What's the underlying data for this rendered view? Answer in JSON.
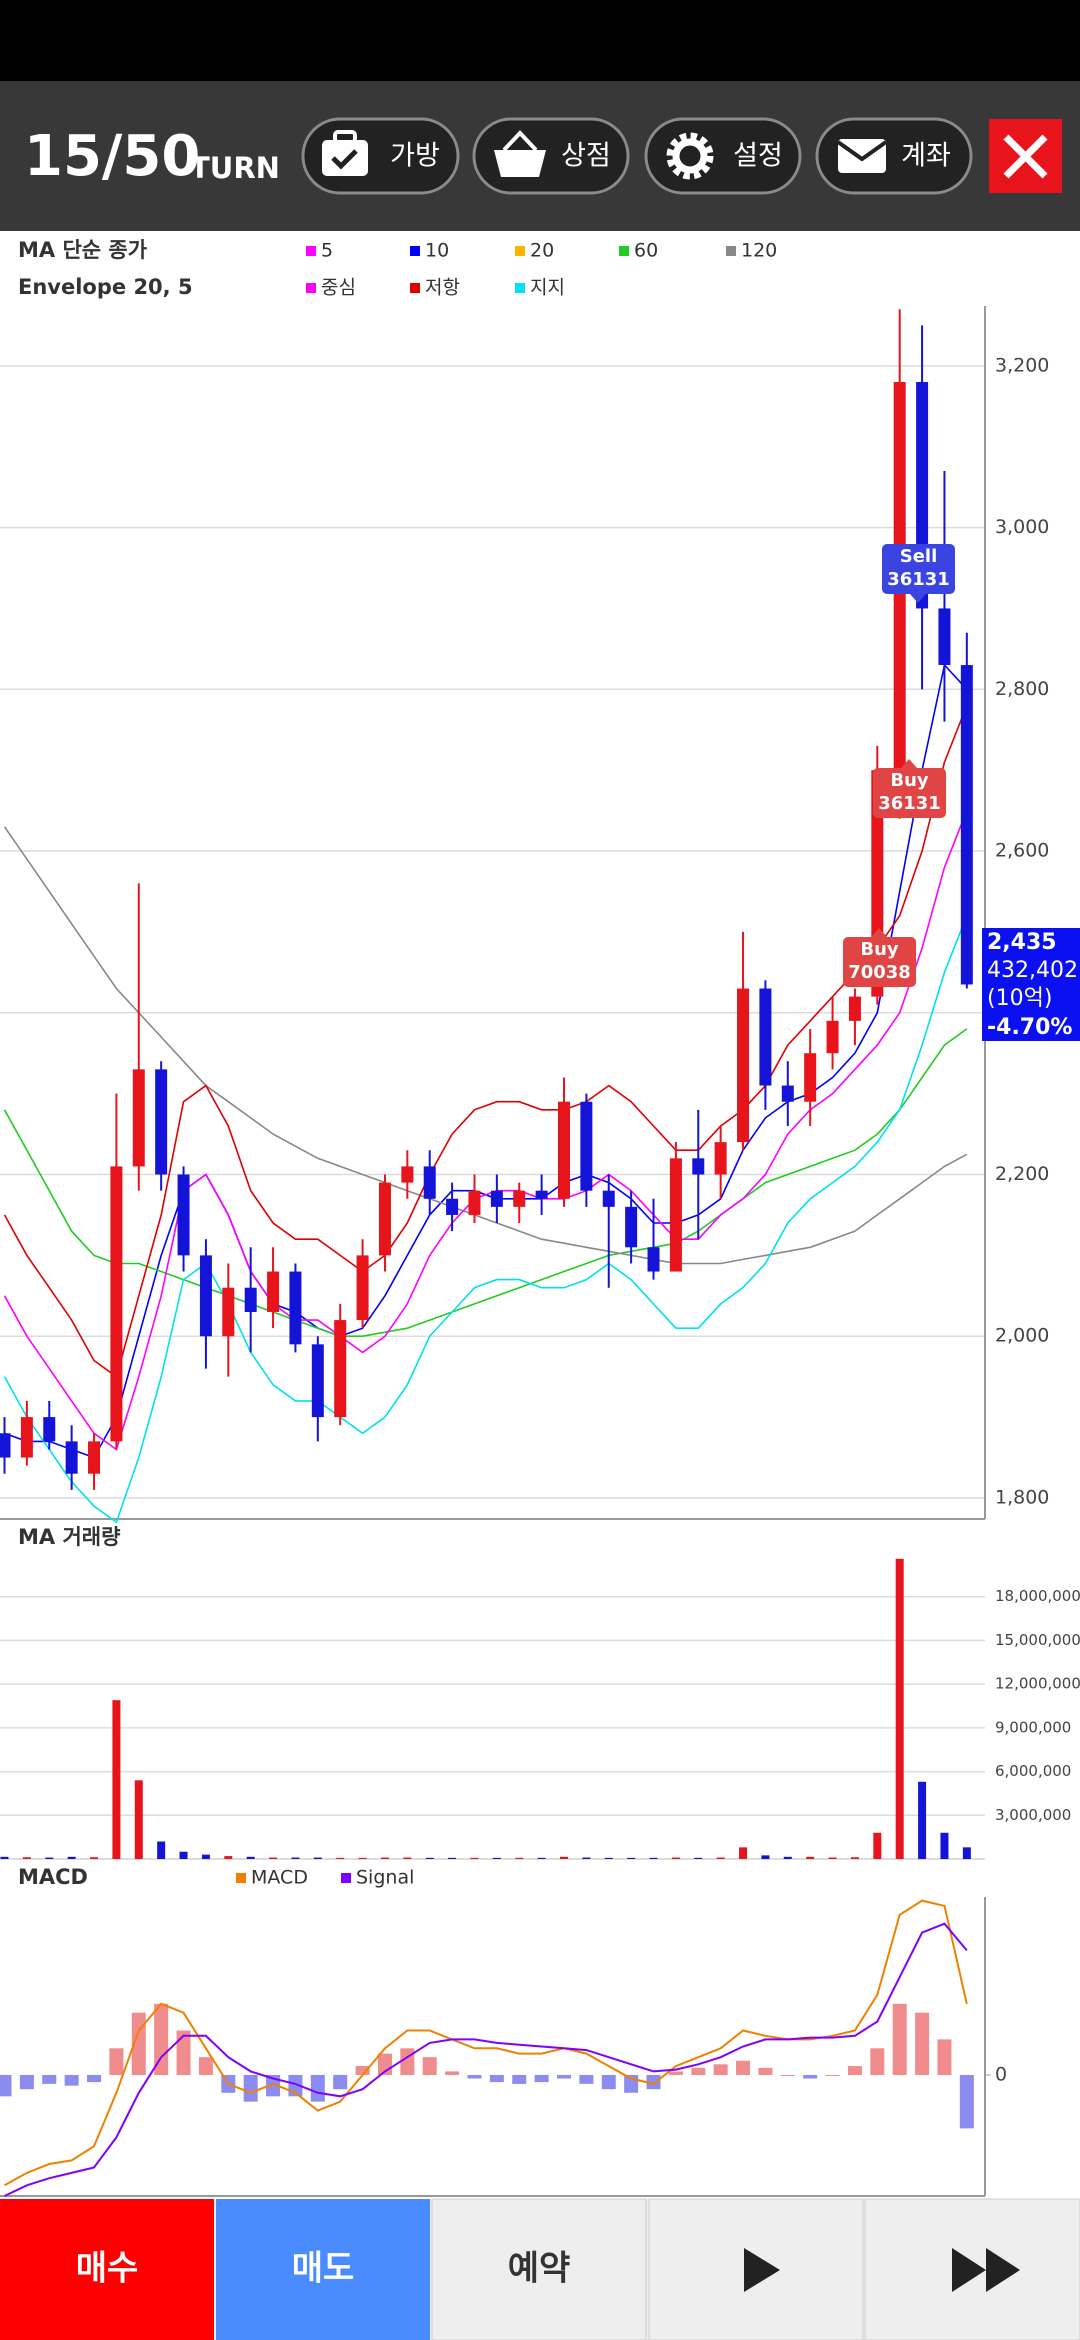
{
  "header": {
    "turn": "15/50",
    "turn_label": "TURN",
    "buttons": [
      "가방",
      "상점",
      "설정",
      "계좌"
    ]
  },
  "footer": {
    "buttons": [
      "매수",
      "매도",
      "예약"
    ]
  },
  "chart_data": [
    {
      "type": "candlestick",
      "title": "MA 단순 종가",
      "subtitle": "Envelope 20, 5",
      "open": [
        1880,
        1850,
        1900,
        1870,
        1830,
        1870,
        2210,
        2330,
        2200,
        2100,
        2000,
        2060,
        2030,
        2080,
        1990,
        1900,
        2020,
        2100,
        2190,
        2210,
        2170,
        2150,
        2180,
        2160,
        2180,
        2170,
        2290,
        2180,
        2160,
        2110,
        2080,
        2220,
        2200,
        2240,
        2430,
        2310,
        2290,
        2350,
        2390,
        2420,
        2650,
        3180,
        2900,
        2830
      ],
      "high": [
        1900,
        1920,
        1920,
        1890,
        1880,
        2300,
        2560,
        2340,
        2210,
        2120,
        2090,
        2110,
        2110,
        2090,
        2000,
        2040,
        2120,
        2200,
        2230,
        2230,
        2190,
        2200,
        2200,
        2190,
        2200,
        2320,
        2300,
        2200,
        2180,
        2170,
        2240,
        2280,
        2260,
        2500,
        2440,
        2340,
        2380,
        2420,
        2430,
        2730,
        3270,
        3250,
        3070,
        2870
      ],
      "low": [
        1830,
        1840,
        1860,
        1810,
        1810,
        1860,
        2180,
        2180,
        2080,
        1960,
        1950,
        1980,
        2010,
        1980,
        1870,
        1890,
        2010,
        2080,
        2170,
        2150,
        2130,
        2140,
        2140,
        2140,
        2150,
        2160,
        2160,
        2060,
        2090,
        2070,
        2080,
        2120,
        2170,
        2230,
        2280,
        2260,
        2260,
        2330,
        2360,
        2410,
        2640,
        2800,
        2760,
        2430
      ],
      "close": [
        1850,
        1900,
        1870,
        1830,
        1870,
        2210,
        2330,
        2200,
        2100,
        2000,
        2060,
        2030,
        2080,
        1990,
        1900,
        2020,
        2100,
        2190,
        2210,
        2170,
        2150,
        2180,
        2160,
        2180,
        2170,
        2290,
        2180,
        2160,
        2110,
        2080,
        2220,
        2200,
        2240,
        2430,
        2310,
        2290,
        2350,
        2390,
        2420,
        2700,
        3180,
        2900,
        2830,
        2435
      ],
      "up_color": "#e8141c",
      "down_color": "#1414d8",
      "ma_series": [
        {
          "name": "5",
          "color": "#ff00ff"
        },
        {
          "name": "10",
          "color": "#0000ff",
          "values": [
            1880,
            1870,
            1870,
            1860,
            1850,
            1900,
            2000,
            2100,
            2180,
            2200,
            2150,
            2080,
            2040,
            2030,
            2010,
            2000,
            2010,
            2050,
            2100,
            2150,
            2180,
            2180,
            2170,
            2170,
            2170,
            2190,
            2200,
            2190,
            2170,
            2140,
            2140,
            2150,
            2170,
            2230,
            2270,
            2290,
            2300,
            2320,
            2350,
            2400,
            2550,
            2700,
            2830,
            2800
          ]
        },
        {
          "name": "20",
          "color": "#ffb400"
        },
        {
          "name": "60",
          "color": "#22cc22",
          "values": [
            2280,
            2230,
            2180,
            2130,
            2100,
            2090,
            2090,
            2080,
            2070,
            2060,
            2050,
            2040,
            2030,
            2020,
            2010,
            2000,
            2000,
            2005,
            2010,
            2020,
            2030,
            2040,
            2050,
            2060,
            2070,
            2080,
            2090,
            2100,
            2105,
            2110,
            2115,
            2130,
            2150,
            2170,
            2190,
            2200,
            2210,
            2220,
            2230,
            2250,
            2280,
            2320,
            2360,
            2380
          ]
        },
        {
          "name": "120",
          "color": "#888888",
          "values": [
            2630,
            2590,
            2550,
            2510,
            2470,
            2430,
            2400,
            2370,
            2340,
            2310,
            2290,
            2270,
            2250,
            2235,
            2220,
            2210,
            2200,
            2190,
            2180,
            2170,
            2160,
            2150,
            2140,
            2130,
            2120,
            2115,
            2110,
            2105,
            2100,
            2095,
            2090,
            2090,
            2090,
            2095,
            2100,
            2105,
            2110,
            2120,
            2130,
            2150,
            2170,
            2190,
            2210,
            2225
          ]
        }
      ],
      "envelope_series": [
        {
          "name": "중심",
          "color": "#ff00ff",
          "values": [
            2050,
            2000,
            1960,
            1920,
            1880,
            1860,
            1950,
            2050,
            2180,
            2200,
            2150,
            2080,
            2040,
            2020,
            2020,
            2000,
            1980,
            2000,
            2040,
            2100,
            2140,
            2170,
            2180,
            2180,
            2170,
            2170,
            2180,
            2200,
            2180,
            2150,
            2120,
            2120,
            2150,
            2170,
            2200,
            2250,
            2280,
            2300,
            2330,
            2360,
            2400,
            2480,
            2580,
            2650
          ]
        },
        {
          "name": "저항",
          "color": "#e00000",
          "values": [
            2150,
            2100,
            2060,
            2020,
            1970,
            1950,
            2050,
            2150,
            2290,
            2310,
            2260,
            2180,
            2140,
            2120,
            2120,
            2100,
            2080,
            2100,
            2140,
            2200,
            2250,
            2280,
            2290,
            2290,
            2280,
            2280,
            2290,
            2310,
            2290,
            2260,
            2230,
            2230,
            2260,
            2280,
            2310,
            2360,
            2390,
            2420,
            2450,
            2480,
            2520,
            2600,
            2710,
            2780
          ]
        },
        {
          "name": "지지",
          "color": "#00e0f0",
          "values": [
            1950,
            1900,
            1860,
            1820,
            1790,
            1770,
            1850,
            1950,
            2070,
            2090,
            2040,
            1980,
            1940,
            1920,
            1920,
            1900,
            1880,
            1900,
            1940,
            2000,
            2030,
            2060,
            2070,
            2070,
            2060,
            2060,
            2070,
            2090,
            2070,
            2040,
            2010,
            2010,
            2040,
            2060,
            2090,
            2140,
            2170,
            2190,
            2210,
            2240,
            2280,
            2360,
            2450,
            2520
          ]
        }
      ],
      "ylim": [
        1774,
        3274
      ],
      "yticks": [
        {
          "value": 1800,
          "label": "1,800"
        },
        {
          "value": 2000,
          "label": "2,000"
        },
        {
          "value": 2200,
          "label": "2,200"
        },
        {
          "value": 2400,
          "label": "2,400"
        },
        {
          "value": 2600,
          "label": "2,600"
        },
        {
          "value": 2800,
          "label": "2,800"
        },
        {
          "value": 3000,
          "label": "3,000"
        },
        {
          "value": 3200,
          "label": "3,200"
        }
      ],
      "grid": true,
      "markers": [
        {
          "label": "Sell",
          "value": 36131
        },
        {
          "label": "Buy",
          "value": 36131
        },
        {
          "label": "Buy",
          "value": 70038
        }
      ],
      "current": {
        "price": "2,435",
        "volume": "432,402",
        "unit": "(10억)",
        "change": "-4.70%"
      }
    },
    {
      "type": "bar",
      "title": "MA 거래량",
      "values": [
        150000,
        120000,
        100000,
        150000,
        120000,
        10900000,
        5400000,
        1200000,
        500000,
        300000,
        200000,
        150000,
        100000,
        100000,
        100000,
        80000,
        80000,
        100000,
        100000,
        80000,
        80000,
        80000,
        80000,
        80000,
        80000,
        150000,
        100000,
        80000,
        80000,
        80000,
        100000,
        80000,
        100000,
        800000,
        250000,
        150000,
        150000,
        100000,
        120000,
        1800000,
        20600000,
        5300000,
        1800000,
        800000
      ],
      "ylim": [
        0,
        21000000
      ],
      "yticks": [
        {
          "value": 3000000,
          "label": "3,000,000"
        },
        {
          "value": 6000000,
          "label": "6,000,000"
        },
        {
          "value": 9000000,
          "label": "9,000,000"
        },
        {
          "value": 12000000,
          "label": "12,000,000"
        },
        {
          "value": 15000000,
          "label": "15,000,000"
        },
        {
          "value": 18000000,
          "label": "18,000,000"
        }
      ],
      "grid": true
    },
    {
      "type": "macd",
      "title": "MACD",
      "histogram": [
        -12,
        -8,
        -5,
        -6,
        -4,
        15,
        35,
        40,
        25,
        10,
        -10,
        -15,
        -12,
        -12,
        -15,
        -8,
        5,
        12,
        15,
        10,
        2,
        -2,
        -4,
        -5,
        -4,
        -2,
        -5,
        -8,
        -10,
        -8,
        2,
        4,
        6,
        8,
        4,
        0,
        -2,
        0,
        5,
        15,
        40,
        35,
        20,
        -30
      ],
      "pos_color": "#f08c8c",
      "neg_color": "#8c8cf0",
      "series": [
        {
          "name": "MACD",
          "color": "#f08000",
          "values": [
            -62,
            -55,
            -50,
            -48,
            -40,
            -10,
            25,
            40,
            35,
            15,
            -5,
            -10,
            -5,
            -10,
            -20,
            -15,
            0,
            15,
            25,
            25,
            20,
            15,
            15,
            12,
            12,
            15,
            12,
            5,
            -2,
            -5,
            5,
            10,
            15,
            25,
            22,
            20,
            20,
            22,
            25,
            45,
            90,
            98,
            95,
            40
          ]
        },
        {
          "name": "Signal",
          "color": "#8000ff",
          "values": [
            -68,
            -62,
            -58,
            -55,
            -52,
            -35,
            -10,
            10,
            22,
            22,
            10,
            2,
            -2,
            -5,
            -10,
            -12,
            -8,
            2,
            10,
            18,
            20,
            20,
            18,
            17,
            16,
            15,
            14,
            10,
            6,
            2,
            3,
            6,
            10,
            16,
            20,
            20,
            21,
            21,
            22,
            30,
            55,
            80,
            85,
            70
          ]
        }
      ],
      "ylim": [
        -68,
        100
      ],
      "yticks": [
        0
      ]
    }
  ]
}
